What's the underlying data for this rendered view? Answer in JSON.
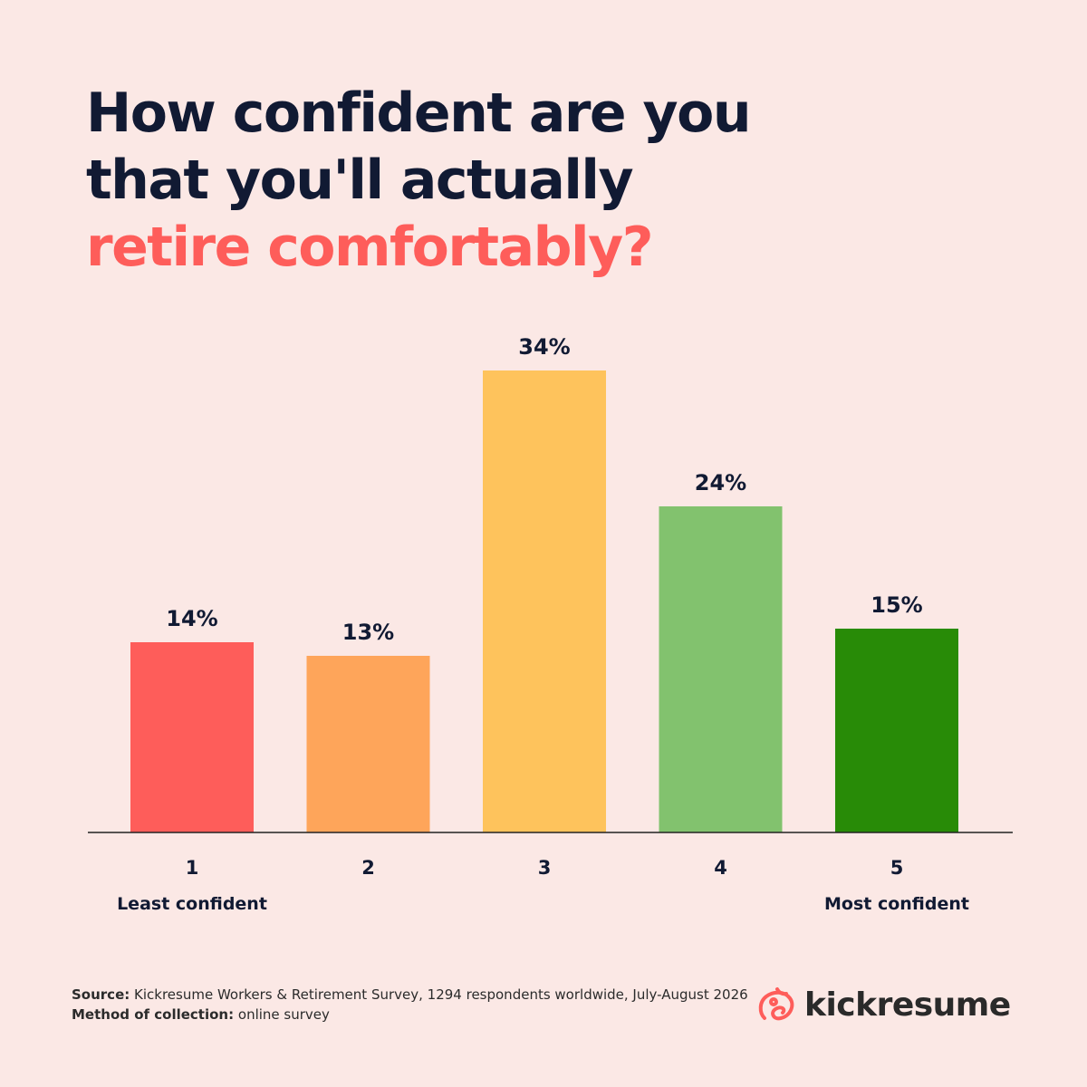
{
  "header": {
    "title_line1": "How confident are you",
    "title_line2": "that you'll actually",
    "title_line3": "retire comfortably?"
  },
  "chart_data": {
    "type": "bar",
    "categories": [
      "1",
      "2",
      "3",
      "4",
      "5"
    ],
    "values": [
      14,
      13,
      34,
      24,
      15
    ],
    "value_labels": [
      "14%",
      "13%",
      "34%",
      "24%",
      "15%"
    ],
    "category_sublabels": [
      "Least confident",
      "",
      "",
      "",
      "Most confident"
    ],
    "colors": [
      "#fe5d5a",
      "#fea55a",
      "#fec35c",
      "#82c26e",
      "#288b07"
    ],
    "ylim": [
      0,
      34
    ],
    "grid": false,
    "title": "How confident are you that you'll actually retire comfortably?"
  },
  "footer": {
    "source_label": "Source:",
    "source_text": "Kickresume Workers & Retirement Survey, 1294 respondents worldwide, July-August 2026",
    "method_label": "Method of collection:",
    "method_text": "online survey"
  },
  "brand": {
    "name": "kickresume",
    "icon": "kickresume-logo-icon",
    "color": "#fe5d5a"
  },
  "colors": {
    "background": "#fbe8e5",
    "text": "#111a33",
    "accent": "#fe5d5a"
  }
}
